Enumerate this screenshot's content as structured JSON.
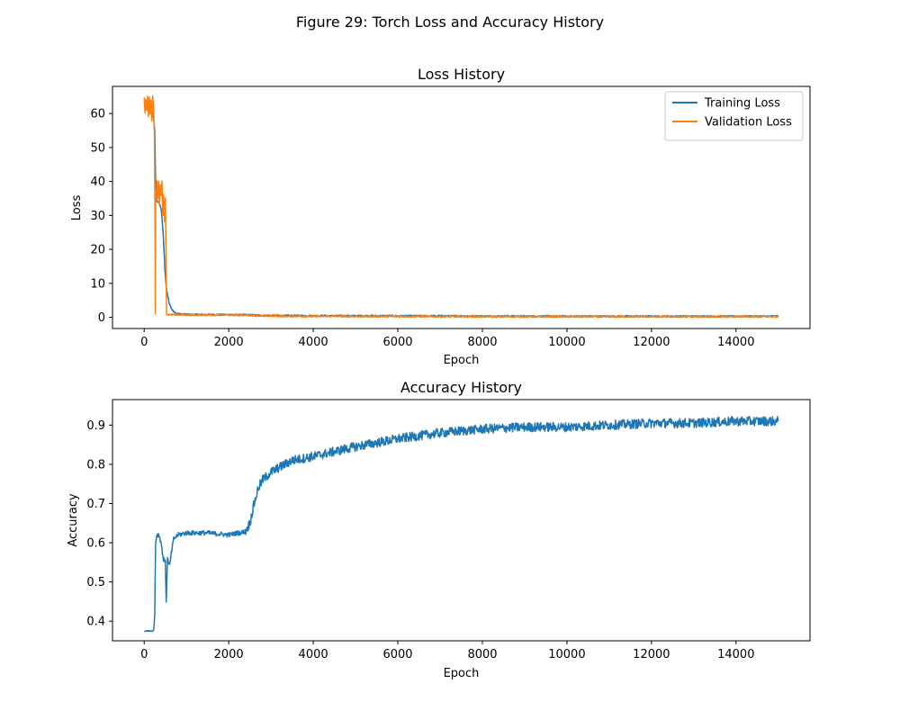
{
  "figure": {
    "title": "Figure 29: Torch Loss and Accuracy History"
  },
  "colors": {
    "training": "#1f77b4",
    "validation": "#ff7f0e"
  },
  "chart_data": [
    {
      "type": "line",
      "title": "Loss History",
      "xlabel": "Epoch",
      "ylabel": "Loss",
      "xlim": [
        -750,
        15750
      ],
      "ylim": [
        -3.3,
        68
      ],
      "xticks": [
        0,
        2000,
        4000,
        6000,
        8000,
        10000,
        12000,
        14000
      ],
      "yticks": [
        0,
        10,
        20,
        30,
        40,
        50,
        60
      ],
      "grid": false,
      "legend": "top-right",
      "series": [
        {
          "name": "Training Loss",
          "color": "#1f77b4",
          "x": [
            0,
            50,
            100,
            150,
            200,
            230,
            250,
            270,
            300,
            330,
            360,
            400,
            430,
            460,
            490,
            520,
            560,
            600,
            650,
            700,
            800,
            900,
            1000,
            1200,
            1500,
            2000,
            2500,
            2700,
            3000,
            4000,
            6000,
            8000,
            10000,
            12000,
            14000,
            15000
          ],
          "y": [
            63,
            62,
            61.5,
            61,
            60,
            58,
            55,
            40,
            34.5,
            34,
            33.5,
            32,
            28,
            22,
            14,
            9,
            6,
            4,
            2.5,
            1.5,
            1.0,
            0.9,
            0.85,
            0.8,
            0.8,
            0.75,
            0.7,
            0.55,
            0.5,
            0.45,
            0.4,
            0.35,
            0.3,
            0.3,
            0.3,
            0.3
          ]
        },
        {
          "name": "Validation Loss",
          "color": "#ff7f0e",
          "x": [
            0,
            20,
            40,
            60,
            80,
            100,
            120,
            140,
            160,
            180,
            200,
            220,
            240,
            255,
            262,
            270,
            285,
            300,
            320,
            340,
            360,
            380,
            400,
            420,
            440,
            460,
            480,
            500,
            515,
            530,
            560,
            600,
            700,
            800,
            1000,
            1500,
            2000,
            2500,
            2700,
            3000,
            4000,
            6000,
            8000,
            10000,
            12000,
            14000,
            15000
          ],
          "y": [
            65,
            60,
            64,
            61,
            65,
            59,
            65,
            60,
            64,
            58,
            65,
            62,
            55,
            30,
            1.3,
            36,
            34,
            40,
            35,
            40,
            33,
            39,
            36,
            40,
            30,
            36,
            28,
            35,
            20,
            1.0,
            0.8,
            0.8,
            0.8,
            0.8,
            0.7,
            0.7,
            0.7,
            0.6,
            0.45,
            0.35,
            0.3,
            0.25,
            0.2,
            0.2,
            0.2,
            0.2,
            0.2
          ]
        }
      ]
    },
    {
      "type": "line",
      "title": "Accuracy History",
      "xlabel": "Epoch",
      "ylabel": "Accuracy",
      "xlim": [
        -750,
        15750
      ],
      "ylim": [
        0.35,
        0.965
      ],
      "xticks": [
        0,
        2000,
        4000,
        6000,
        8000,
        10000,
        12000,
        14000
      ],
      "yticks": [
        0.4,
        0.5,
        0.6,
        0.7,
        0.8,
        0.9
      ],
      "grid": false,
      "legend": "none",
      "series": [
        {
          "color": "#1f77b4",
          "x": [
            0,
            100,
            200,
            230,
            250,
            270,
            300,
            350,
            400,
            450,
            500,
            520,
            550,
            600,
            650,
            700,
            800,
            1000,
            1500,
            2000,
            2200,
            2300,
            2400,
            2500,
            2600,
            2700,
            2800,
            3000,
            3500,
            4000,
            5000,
            6000,
            7000,
            8000,
            9000,
            10000,
            11000,
            12000,
            13000,
            14000,
            15000
          ],
          "y": [
            0.375,
            0.375,
            0.375,
            0.38,
            0.42,
            0.6,
            0.62,
            0.62,
            0.6,
            0.56,
            0.55,
            0.45,
            0.56,
            0.54,
            0.58,
            0.61,
            0.62,
            0.625,
            0.625,
            0.62,
            0.625,
            0.625,
            0.63,
            0.65,
            0.7,
            0.74,
            0.76,
            0.78,
            0.81,
            0.82,
            0.845,
            0.865,
            0.88,
            0.89,
            0.895,
            0.895,
            0.9,
            0.905,
            0.905,
            0.91,
            0.91
          ]
        }
      ]
    }
  ]
}
